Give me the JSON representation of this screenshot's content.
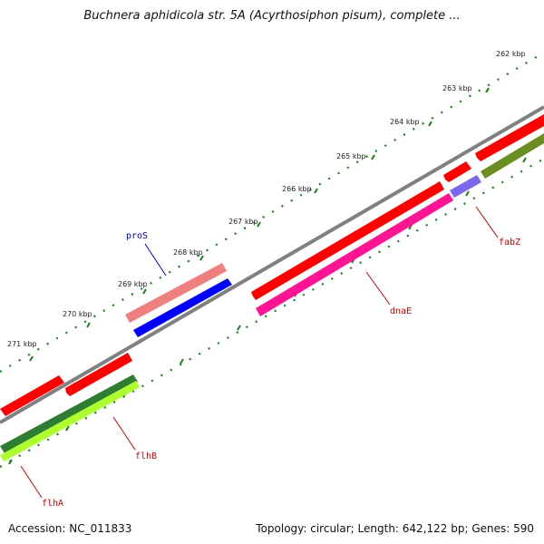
{
  "title": "Buchnera aphidicola str. 5A (Acyrthosiphon pisum), complete ...",
  "footer": {
    "accession": "Accession: NC_011833",
    "summary": "Topology: circular; Length: 642,122 bp; Genes: 590"
  },
  "ticks": [
    "262 kbp",
    "263 kbp",
    "264 kbp",
    "265 kbp",
    "266 kbp",
    "267 kbp",
    "268 kbp",
    "269 kbp",
    "270 kbp",
    "271 kbp"
  ],
  "genes": [
    {
      "name": "proS",
      "color": "#0000cc"
    },
    {
      "name": "dnaE",
      "color": "#cc0000"
    },
    {
      "name": "fabZ",
      "color": "#cc0000"
    },
    {
      "name": "flhB",
      "color": "#cc0000"
    },
    {
      "name": "flhA",
      "color": "#cc0000"
    }
  ],
  "colors": {
    "backbone": "#808080",
    "tick": "#1a7f1a",
    "cds_forward": "#ff0000",
    "cds_reverse": "#0000ff",
    "rna_light": "#f08080",
    "cds_magenta": "#ff1493",
    "cds_purple": "#7b68ee",
    "cds_olive": "#6b8e23",
    "cds_dark_green": "#2e7d32",
    "cds_lime": "#adff2f"
  }
}
